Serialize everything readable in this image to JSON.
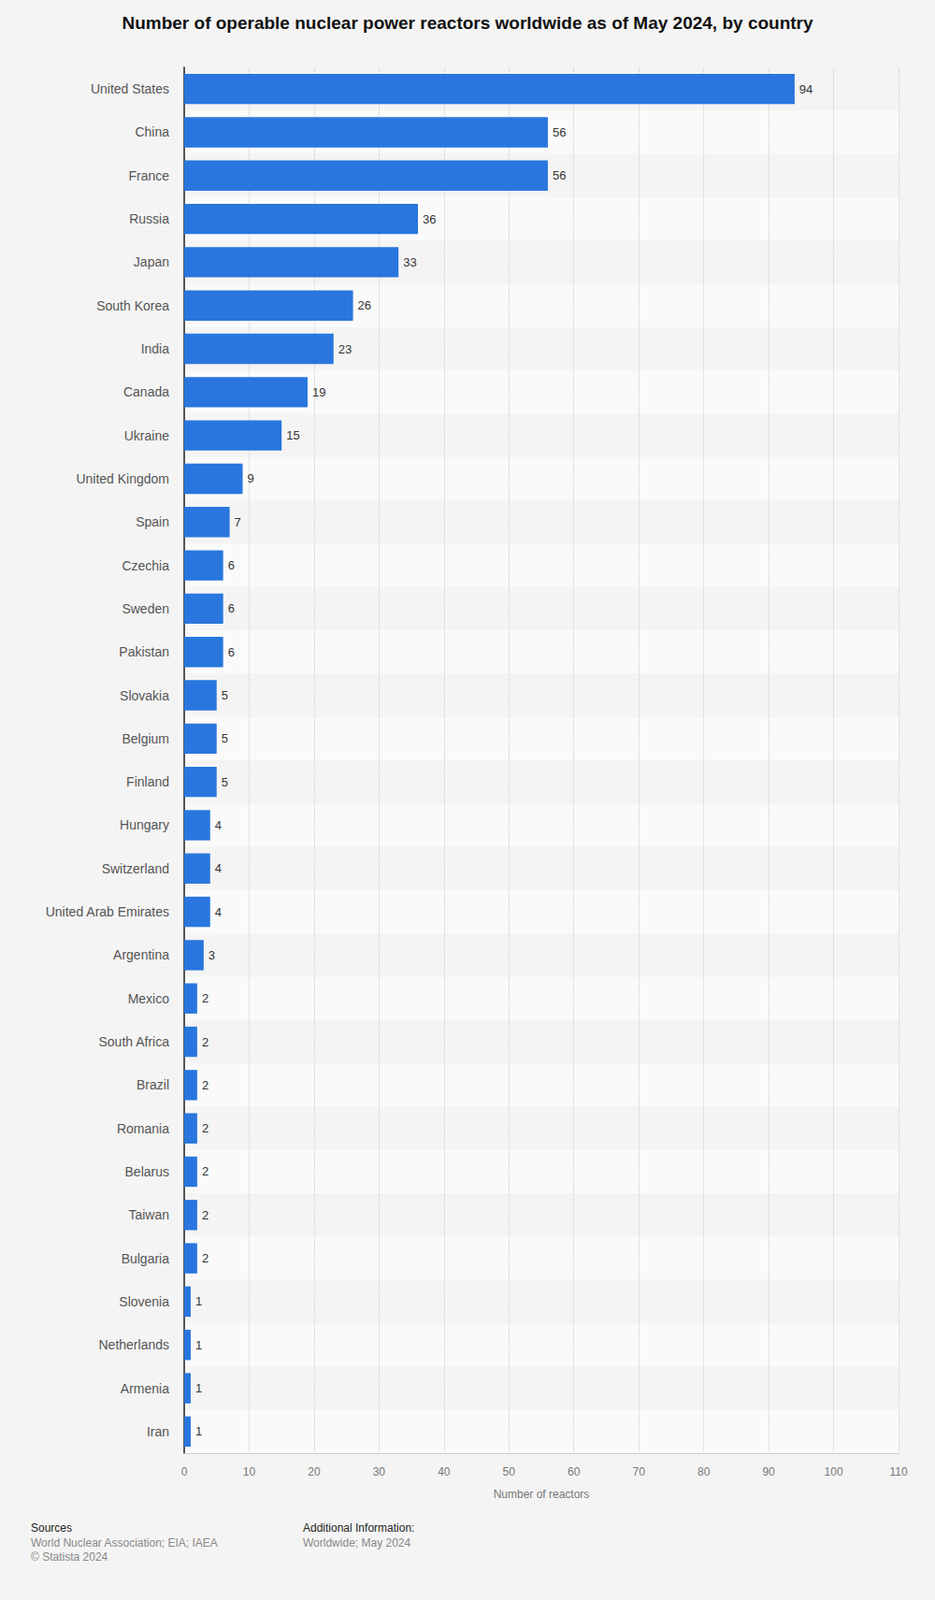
{
  "chart_data": {
    "type": "bar",
    "title": "Number of operable nuclear power reactors worldwide as of May 2024, by country",
    "x_label": "Number of reactors",
    "categories": [
      "United States",
      "China",
      "France",
      "Russia",
      "Japan",
      "South Korea",
      "India",
      "Canada",
      "Ukraine",
      "United Kingdom",
      "Spain",
      "Czechia",
      "Sweden",
      "Pakistan",
      "Slovakia",
      "Belgium",
      "Finland",
      "Hungary",
      "Switzerland",
      "United Arab Emirates",
      "Argentina",
      "Mexico",
      "South Africa",
      "Brazil",
      "Romania",
      "Belarus",
      "Taiwan",
      "Bulgaria",
      "Slovenia",
      "Netherlands",
      "Armenia",
      "Iran"
    ],
    "values": [
      94,
      56,
      56,
      36,
      33,
      26,
      23,
      19,
      15,
      9,
      7,
      6,
      6,
      6,
      5,
      5,
      5,
      4,
      4,
      4,
      3,
      2,
      2,
      2,
      2,
      2,
      2,
      2,
      1,
      1,
      1,
      1
    ],
    "color": "#2876de",
    "orientation": "horizontal",
    "xlim": [
      0,
      110
    ],
    "xticks": [
      0,
      10,
      20,
      30,
      40,
      50,
      60,
      70,
      80,
      90,
      100,
      110
    ],
    "grid": true,
    "data_labels": true,
    "annotations": [
      "Sources",
      "World Nuclear Association; EIA; IAEA",
      "© Statista 2024",
      "Additional Information:",
      "Worldwide; May 2024"
    ]
  }
}
